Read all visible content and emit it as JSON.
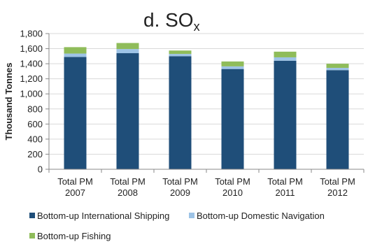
{
  "chart_data": {
    "type": "bar",
    "stacked": true,
    "title": "d. SO",
    "title_subscript": "x",
    "ylabel": "Thousand Tonnes",
    "xlabel": "",
    "ylim": [
      0,
      1800
    ],
    "yticks": [
      0,
      200,
      400,
      600,
      800,
      1000,
      1200,
      1400,
      1600,
      1800
    ],
    "ytick_labels": [
      "0",
      "200",
      "400",
      "600",
      "800",
      "1,000",
      "1,200",
      "1,400",
      "1,600",
      "1,800"
    ],
    "categories": [
      [
        "Total PM",
        "2007"
      ],
      [
        "Total PM",
        "2008"
      ],
      [
        "Total PM",
        "2009"
      ],
      [
        "Total PM",
        "2010"
      ],
      [
        "Total PM",
        "2011"
      ],
      [
        "Total PM",
        "2012"
      ]
    ],
    "series": [
      {
        "name": "Bottom-up International Shipping",
        "color": "#1f4e79",
        "values": [
          1490,
          1540,
          1500,
          1330,
          1440,
          1315
        ]
      },
      {
        "name": "Bottom-up Domestic Navigation",
        "color": "#9dc3e6",
        "values": [
          45,
          55,
          30,
          35,
          45,
          30
        ]
      },
      {
        "name": "Bottom-up Fishing",
        "color": "#8fbc5a",
        "values": [
          85,
          80,
          45,
          65,
          75,
          55
        ]
      }
    ],
    "grid": true,
    "legend_position": "bottom"
  }
}
